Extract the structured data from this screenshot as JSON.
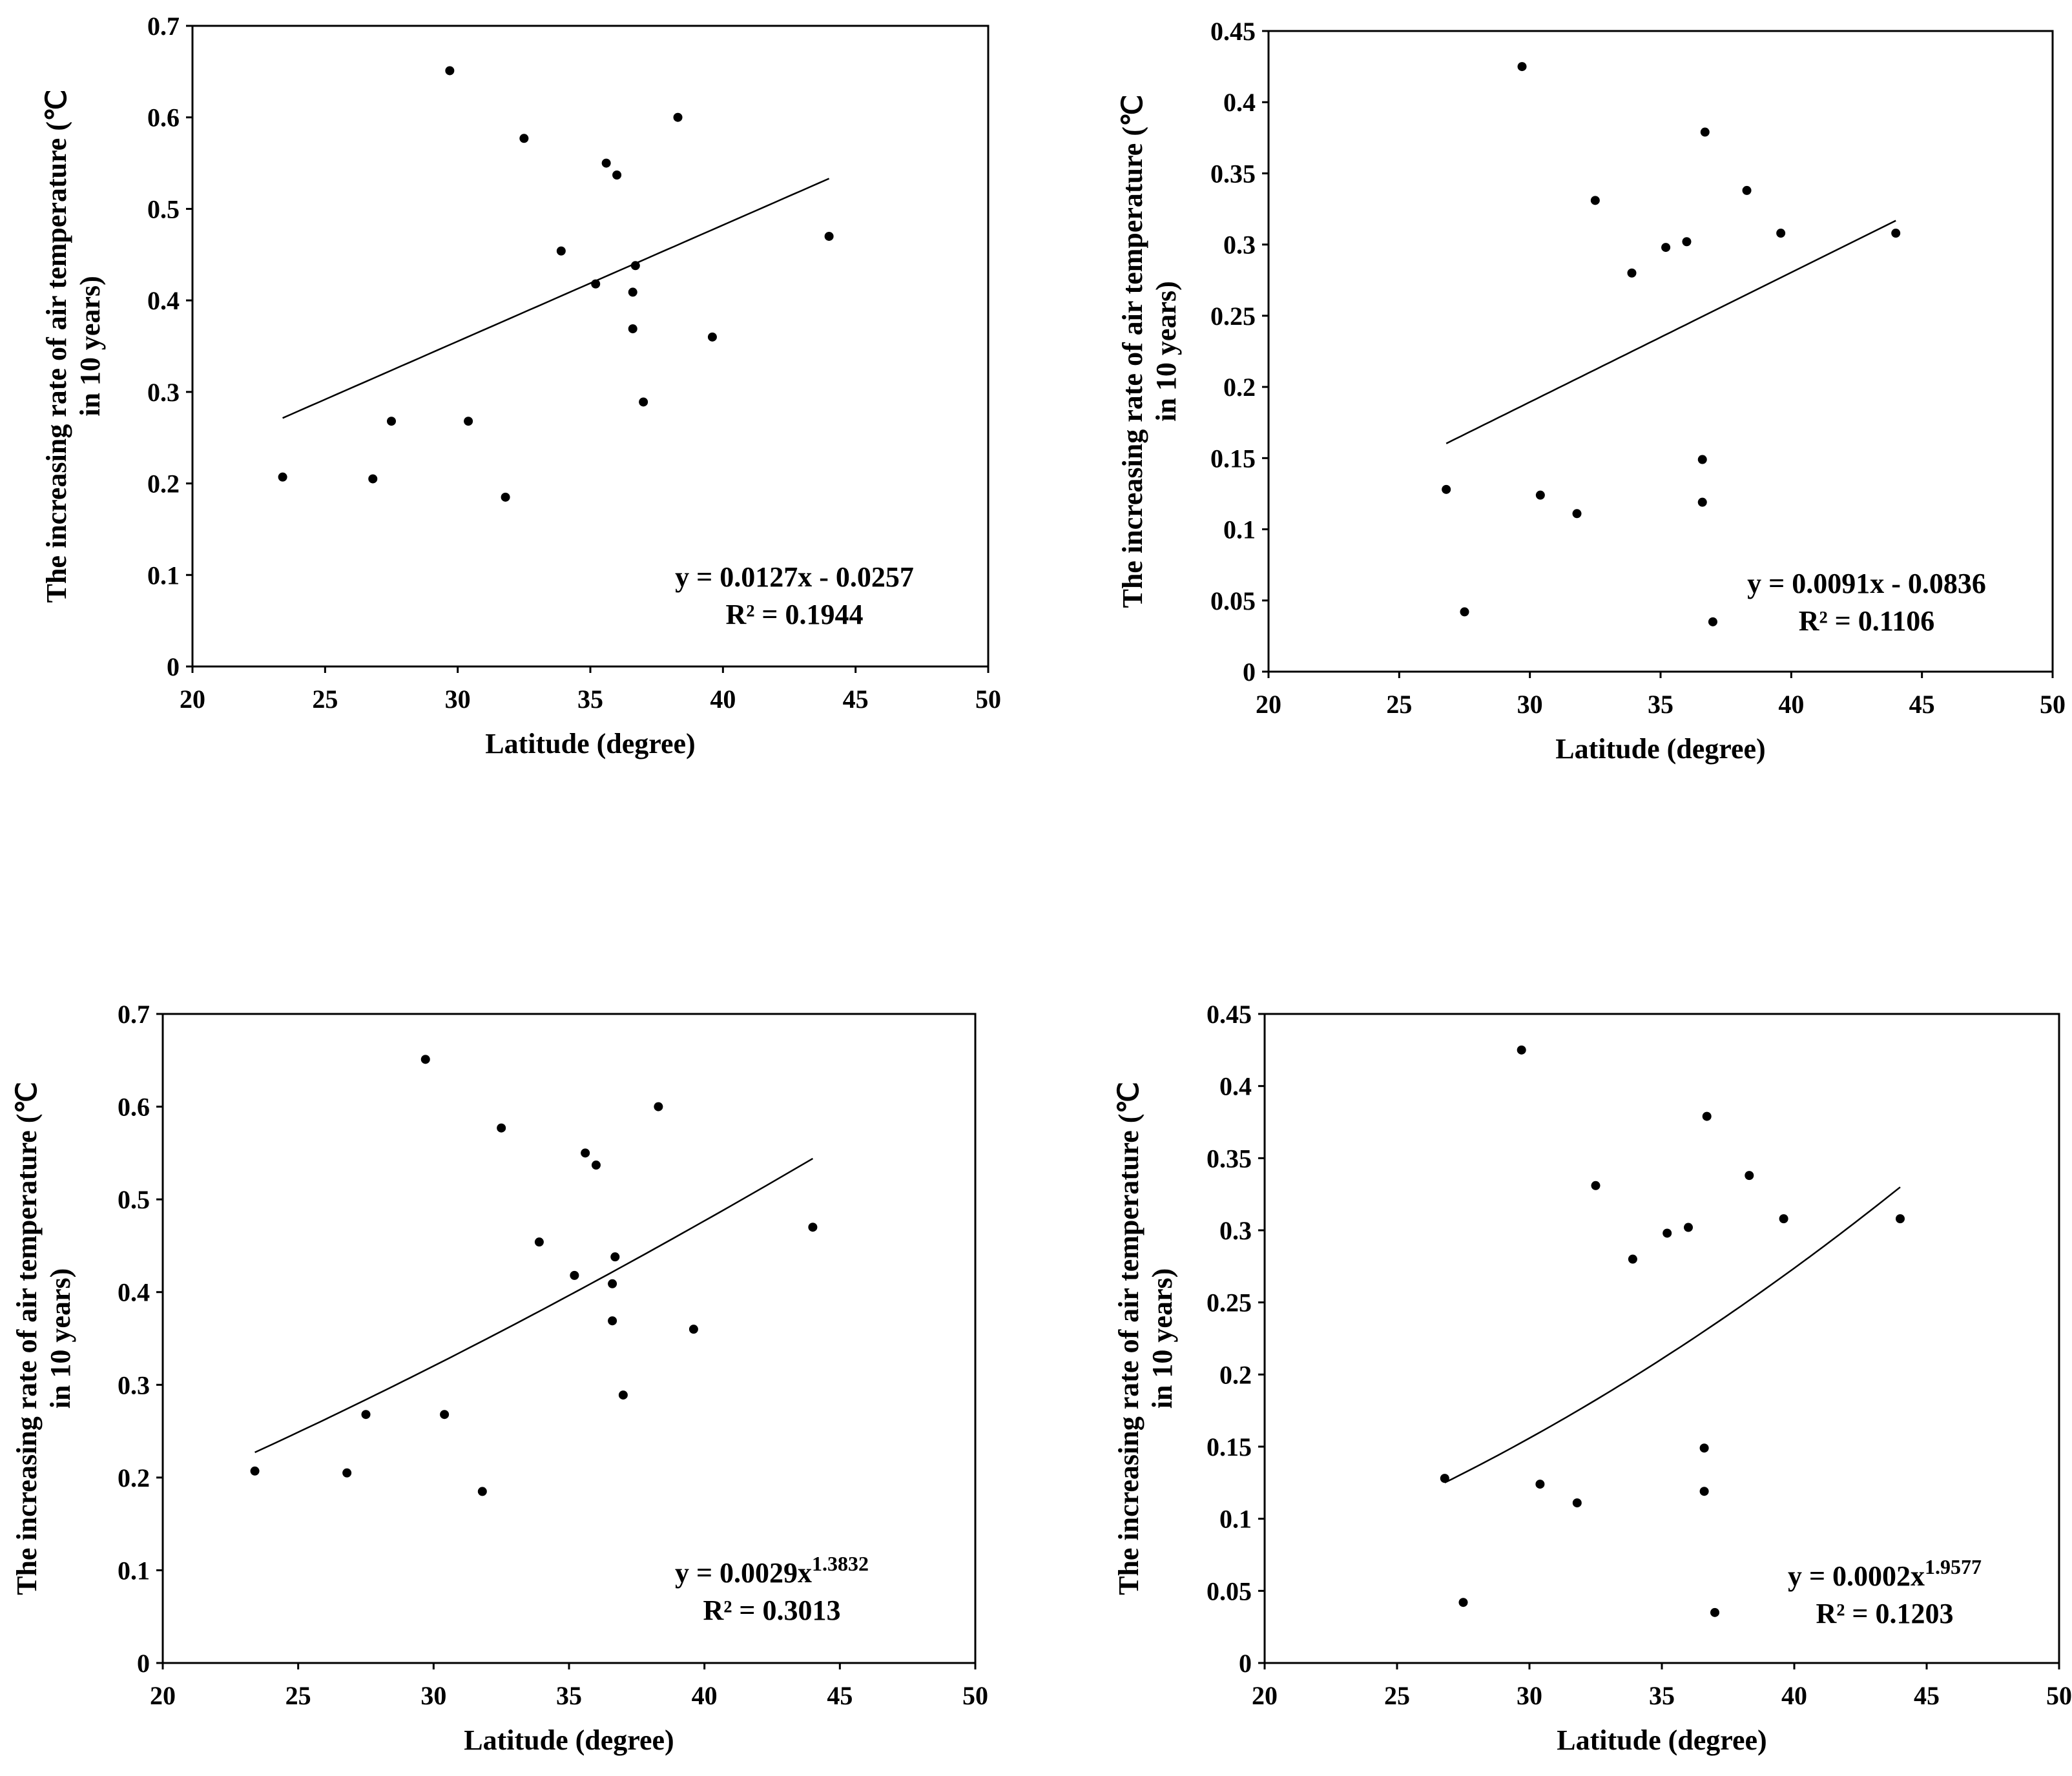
{
  "chart_data": [
    {
      "type": "scatter",
      "panel": "top-left",
      "xlabel": "Latitude (degree)",
      "ylabel_line1": "The increasing rate of air temperature (℃",
      "ylabel_line2": "in 10 years)",
      "xlim": [
        20,
        50
      ],
      "ylim": [
        0,
        0.7
      ],
      "xticks": [
        "20",
        "25",
        "30",
        "35",
        "40",
        "45",
        "50"
      ],
      "yticks": [
        "0",
        "0.1",
        "0.2",
        "0.3",
        "0.4",
        "0.5",
        "0.6",
        "0.7"
      ],
      "points": [
        [
          23.4,
          0.207
        ],
        [
          26.8,
          0.205
        ],
        [
          27.5,
          0.268
        ],
        [
          29.7,
          0.651
        ],
        [
          30.4,
          0.268
        ],
        [
          31.8,
          0.185
        ],
        [
          32.5,
          0.577
        ],
        [
          33.9,
          0.454
        ],
        [
          35.2,
          0.418
        ],
        [
          35.6,
          0.55
        ],
        [
          36.0,
          0.537
        ],
        [
          36.6,
          0.409
        ],
        [
          36.6,
          0.369
        ],
        [
          36.7,
          0.438
        ],
        [
          37.0,
          0.289
        ],
        [
          38.3,
          0.6
        ],
        [
          39.6,
          0.36
        ],
        [
          44.0,
          0.47
        ]
      ],
      "trendline": {
        "kind": "linear",
        "a": 0.0127,
        "b": -0.0257,
        "x_range": [
          23.4,
          44.0
        ]
      },
      "equation": "y = 0.0127x - 0.0257",
      "r2": "R² = 0.1944"
    },
    {
      "type": "scatter",
      "panel": "top-right",
      "xlabel": "Latitude (degree)",
      "ylabel_line1": "The increasing rate of air temperature (℃",
      "ylabel_line2": "in 10 years)",
      "xlim": [
        20,
        50
      ],
      "ylim": [
        0,
        0.45
      ],
      "xticks": [
        "20",
        "25",
        "30",
        "35",
        "40",
        "45",
        "50"
      ],
      "yticks": [
        "0",
        "0.05",
        "0.1",
        "0.15",
        "0.2",
        "0.25",
        "0.3",
        "0.35",
        "0.4",
        "0.45"
      ],
      "points": [
        [
          26.8,
          0.128
        ],
        [
          27.5,
          0.042
        ],
        [
          29.7,
          0.425
        ],
        [
          30.4,
          0.124
        ],
        [
          31.8,
          0.111
        ],
        [
          32.5,
          0.331
        ],
        [
          33.9,
          0.28
        ],
        [
          35.2,
          0.298
        ],
        [
          36.0,
          0.302
        ],
        [
          36.6,
          0.149
        ],
        [
          36.6,
          0.119
        ],
        [
          36.7,
          0.379
        ],
        [
          37.0,
          0.035
        ],
        [
          38.3,
          0.338
        ],
        [
          39.6,
          0.308
        ],
        [
          44.0,
          0.308
        ]
      ],
      "trendline": {
        "kind": "linear",
        "a": 0.0091,
        "b": -0.0836,
        "x_range": [
          26.8,
          44.0
        ]
      },
      "equation": "y = 0.0091x - 0.0836",
      "r2": "R² = 0.1106"
    },
    {
      "type": "scatter",
      "panel": "bottom-left",
      "xlabel": "Latitude (degree)",
      "ylabel_line1": "The increasing rate of air temperature (℃",
      "ylabel_line2": "in 10 years)",
      "xlim": [
        20,
        50
      ],
      "ylim": [
        0,
        0.7
      ],
      "xticks": [
        "20",
        "25",
        "30",
        "35",
        "40",
        "45",
        "50"
      ],
      "yticks": [
        "0",
        "0.1",
        "0.2",
        "0.3",
        "0.4",
        "0.5",
        "0.6",
        "0.7"
      ],
      "points": [
        [
          23.4,
          0.207
        ],
        [
          26.8,
          0.205
        ],
        [
          27.5,
          0.268
        ],
        [
          29.7,
          0.651
        ],
        [
          30.4,
          0.268
        ],
        [
          31.8,
          0.185
        ],
        [
          32.5,
          0.577
        ],
        [
          33.9,
          0.454
        ],
        [
          35.2,
          0.418
        ],
        [
          35.6,
          0.55
        ],
        [
          36.0,
          0.537
        ],
        [
          36.6,
          0.409
        ],
        [
          36.6,
          0.369
        ],
        [
          36.7,
          0.438
        ],
        [
          37.0,
          0.289
        ],
        [
          38.3,
          0.6
        ],
        [
          39.6,
          0.36
        ],
        [
          44.0,
          0.47
        ]
      ],
      "trendline": {
        "kind": "power",
        "a": 0.0029,
        "b": 1.3832,
        "x_range": [
          23.4,
          44.0
        ]
      },
      "equation": "y = 0.0029x",
      "exponent": "1.3832",
      "r2": "R² = 0.3013"
    },
    {
      "type": "scatter",
      "panel": "bottom-right",
      "xlabel": "Latitude (degree)",
      "ylabel_line1": "The increasing rate of air temperature (℃",
      "ylabel_line2": "in 10 years)",
      "xlim": [
        20,
        50
      ],
      "ylim": [
        0,
        0.45
      ],
      "xticks": [
        "20",
        "25",
        "30",
        "35",
        "40",
        "45",
        "50"
      ],
      "yticks": [
        "0",
        "0.05",
        "0.1",
        "0.15",
        "0.2",
        "0.25",
        "0.3",
        "0.35",
        "0.4",
        "0.45"
      ],
      "points": [
        [
          26.8,
          0.128
        ],
        [
          27.5,
          0.042
        ],
        [
          29.7,
          0.425
        ],
        [
          30.4,
          0.124
        ],
        [
          31.8,
          0.111
        ],
        [
          32.5,
          0.331
        ],
        [
          33.9,
          0.28
        ],
        [
          35.2,
          0.298
        ],
        [
          36.0,
          0.302
        ],
        [
          36.6,
          0.149
        ],
        [
          36.6,
          0.119
        ],
        [
          36.7,
          0.379
        ],
        [
          37.0,
          0.035
        ],
        [
          38.3,
          0.338
        ],
        [
          39.6,
          0.308
        ],
        [
          44.0,
          0.308
        ]
      ],
      "trendline": {
        "kind": "power",
        "a": 0.0002,
        "b": 1.9577,
        "x_range": [
          26.8,
          44.0
        ]
      },
      "equation": "y = 0.0002x",
      "exponent": "1.9577",
      "r2": "R² = 0.1203"
    }
  ]
}
